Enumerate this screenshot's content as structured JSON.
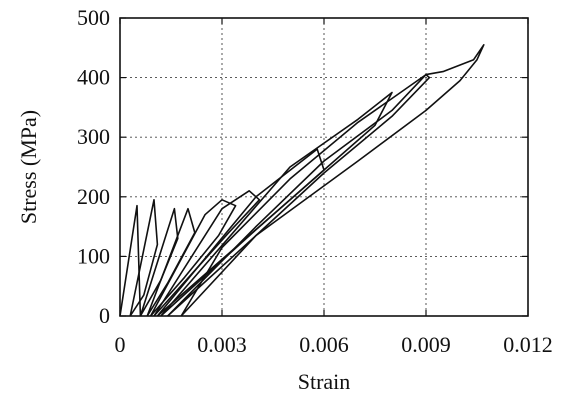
{
  "chart_data": {
    "type": "line",
    "title": "",
    "xlabel": "Strain",
    "ylabel": "Stress (MPa)",
    "xlim": [
      0,
      0.012
    ],
    "ylim": [
      0,
      500
    ],
    "xticks": [
      0,
      0.003,
      0.006,
      0.009,
      0.012
    ],
    "xtick_labels": [
      "0",
      "0.003",
      "0.006",
      "0.009",
      "0.012"
    ],
    "yticks": [
      0,
      100,
      200,
      300,
      400,
      500
    ],
    "ytick_labels": [
      "0",
      "100",
      "200",
      "300",
      "400",
      "500"
    ],
    "grid": true,
    "legend": "none",
    "series": [
      {
        "x": [
          0,
          0.0005,
          0.0006
        ],
        "y": [
          0,
          185,
          0
        ]
      },
      {
        "x": [
          0.0003,
          0.001,
          0.0011,
          0.0007,
          0.0003
        ],
        "y": [
          0,
          195,
          120,
          35,
          0
        ]
      },
      {
        "x": [
          0.0006,
          0.0016,
          0.0017,
          0.0012,
          0.0006
        ],
        "y": [
          0,
          180,
          130,
          60,
          0
        ]
      },
      {
        "x": [
          0.0008,
          0.002,
          0.0022,
          0.0014,
          0.0008
        ],
        "y": [
          0,
          180,
          140,
          55,
          0
        ]
      },
      {
        "x": [
          0.0009,
          0.0025,
          0.003,
          0.0034,
          0.0029,
          0.0019,
          0.0009
        ],
        "y": [
          0,
          170,
          195,
          185,
          135,
          65,
          0
        ]
      },
      {
        "x": [
          0.001,
          0.003,
          0.0038,
          0.0041,
          0.0032,
          0.0021,
          0.001
        ],
        "y": [
          0,
          180,
          210,
          195,
          140,
          70,
          0
        ]
      },
      {
        "x": [
          0.0011,
          0.004,
          0.0058,
          0.006,
          0.0045,
          0.003,
          0.0011
        ],
        "y": [
          0,
          200,
          280,
          245,
          170,
          95,
          0
        ]
      },
      {
        "x": [
          0.0012,
          0.005,
          0.007,
          0.008,
          0.0075,
          0.006,
          0.004,
          0.0012
        ],
        "y": [
          0,
          250,
          330,
          375,
          320,
          245,
          145,
          0
        ]
      },
      {
        "x": [
          0.0014,
          0.004,
          0.006,
          0.008,
          0.009,
          0.0091,
          0.008,
          0.006,
          0.004,
          0.0014
        ],
        "y": [
          0,
          150,
          260,
          345,
          405,
          400,
          335,
          240,
          135,
          0
        ]
      },
      {
        "x": [
          0.0018,
          0.004,
          0.007,
          0.009,
          0.01,
          0.0105,
          0.0107,
          0.0104,
          0.0095,
          0.009,
          0.007,
          0.005,
          0.003,
          0.0018
        ],
        "y": [
          0,
          135,
          260,
          345,
          395,
          430,
          455,
          430,
          410,
          405,
          325,
          230,
          115,
          0
        ]
      }
    ]
  }
}
